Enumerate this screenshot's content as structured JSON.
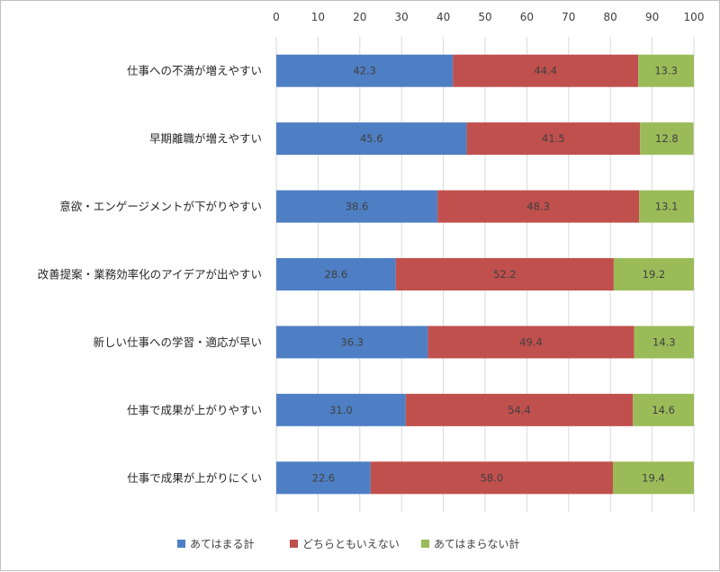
{
  "chart_data": {
    "type": "bar",
    "orientation": "horizontal",
    "stacked": true,
    "title": "",
    "xlabel": "",
    "ylabel": "",
    "xlim": [
      0,
      100
    ],
    "ticks": [
      0,
      10,
      20,
      30,
      40,
      50,
      60,
      70,
      80,
      90,
      100
    ],
    "tick_labels": [
      "0",
      "10",
      "20",
      "30",
      "40",
      "50",
      "60",
      "70",
      "80",
      "90",
      "100"
    ],
    "axis_position": "top",
    "grid": true,
    "legend_position": "bottom",
    "categories": [
      "仕事への不満が増えやすい",
      "早期離職が増えやすい",
      "意欲・エンゲージメントが下がりやすい",
      "改善提案・業務効率化のアイデアが出やすい",
      "新しい仕事への学習・適応が早い",
      "仕事で成果が上がりやすい",
      "仕事で成果が上がりにくい"
    ],
    "series": [
      {
        "name": "あてはまる計",
        "color": "#4e7fc4",
        "values": [
          42.3,
          45.6,
          38.6,
          28.6,
          36.3,
          31.0,
          22.6
        ],
        "labels": [
          "42.3",
          "45.6",
          "38.6",
          "28.6",
          "36.3",
          "31.0",
          "22.6"
        ]
      },
      {
        "name": "どちらともいえない",
        "color": "#c0504d",
        "values": [
          44.4,
          41.5,
          48.3,
          52.2,
          49.4,
          54.4,
          58.0
        ],
        "labels": [
          "44.4",
          "41.5",
          "48.3",
          "52.2",
          "49.4",
          "54.4",
          "58.0"
        ]
      },
      {
        "name": "あてはまらない計",
        "color": "#9bbb59",
        "values": [
          13.3,
          12.8,
          13.1,
          19.2,
          14.3,
          14.6,
          19.4
        ],
        "labels": [
          "13.3",
          "12.8",
          "13.1",
          "19.2",
          "14.3",
          "14.6",
          "19.4"
        ]
      }
    ]
  }
}
